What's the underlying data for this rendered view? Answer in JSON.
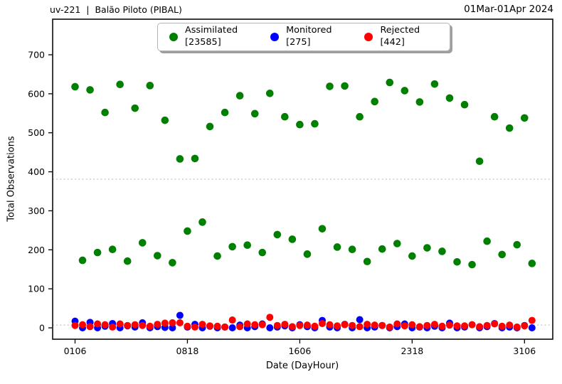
{
  "header": {
    "left": "uv-221  |  Balão Piloto (PIBAL)",
    "right": "01Mar-01Apr 2024"
  },
  "chart_data": {
    "type": "scatter",
    "title": "uv-221 | Balão Piloto (PIBAL)",
    "date_range": "01Mar-01Apr 2024",
    "xlabel": "Date (DayHour)",
    "ylabel": "Total Observations",
    "grid": false,
    "legend_position": "top center",
    "ylim": [
      -30,
      790
    ],
    "y_ticks": [
      0,
      100,
      200,
      300,
      400,
      500,
      600,
      700
    ],
    "x_ticks": [
      {
        "label": "0106",
        "slot": 0
      },
      {
        "label": "0818",
        "slot": 15
      },
      {
        "label": "1606",
        "slot": 30
      },
      {
        "label": "2318",
        "slot": 45
      },
      {
        "label": "3106",
        "slot": 60
      }
    ],
    "x_slots": [
      "0106",
      "0118",
      "0206",
      "0218",
      "0306",
      "0318",
      "0406",
      "0418",
      "0506",
      "0518",
      "0606",
      "0618",
      "0706",
      "0718",
      "0806",
      "0818",
      "0906",
      "0918",
      "1006",
      "1018",
      "1106",
      "1118",
      "1206",
      "1218",
      "1306",
      "1318",
      "1406",
      "1418",
      "1506",
      "1518",
      "1606",
      "1618",
      "1706",
      "1718",
      "1806",
      "1818",
      "1906",
      "1918",
      "2006",
      "2018",
      "2106",
      "2118",
      "2206",
      "2218",
      "2306",
      "2318",
      "2406",
      "2418",
      "2506",
      "2518",
      "2606",
      "2618",
      "2706",
      "2718",
      "2806",
      "2818",
      "2906",
      "2918",
      "3006",
      "3018",
      "3106",
      "3118"
    ],
    "reference_lines": [
      {
        "y": 381,
        "color": "#c9c9c9",
        "style": "dotted"
      },
      {
        "y": 7,
        "color": "#c9c9c9",
        "style": "dotted"
      }
    ],
    "series": [
      {
        "name": "Assimilated",
        "count": 23585,
        "count_label": "[23585]",
        "color": "#008000",
        "values": [
          618,
          173,
          610,
          193,
          552,
          201,
          624,
          171,
          563,
          218,
          621,
          185,
          532,
          167,
          433,
          248,
          434,
          271,
          516,
          184,
          552,
          208,
          595,
          212,
          549,
          193,
          601,
          239,
          541,
          227,
          521,
          189,
          523,
          254,
          619,
          207,
          620,
          201,
          541,
          170,
          580,
          202,
          629,
          216,
          608,
          184,
          579,
          205,
          625,
          196,
          589,
          169,
          572,
          162,
          427,
          222,
          541,
          188,
          512,
          213,
          538,
          165
        ]
      },
      {
        "name": "Monitored",
        "count": 275,
        "count_label": "[275]",
        "color": "#0000ff",
        "values": [
          17,
          0,
          14,
          0,
          4,
          11,
          0,
          5,
          2,
          13,
          0,
          3,
          1,
          0,
          32,
          2,
          9,
          0,
          4,
          0,
          2,
          0,
          7,
          0,
          3,
          10,
          0,
          2,
          5,
          0,
          8,
          3,
          0,
          19,
          2,
          0,
          9,
          0,
          21,
          0,
          2,
          6,
          0,
          3,
          10,
          0,
          2,
          0,
          4,
          0,
          12,
          0,
          2,
          8,
          0,
          3,
          11,
          0,
          2,
          0,
          6,
          0
        ]
      },
      {
        "name": "Rejected",
        "count": 442,
        "count_label": "[442]",
        "color": "#ff0000",
        "values": [
          6,
          8,
          3,
          10,
          8,
          2,
          10,
          6,
          8,
          6,
          4,
          9,
          12,
          13,
          13,
          4,
          2,
          9,
          5,
          4,
          2,
          20,
          3,
          10,
          8,
          8,
          27,
          6,
          9,
          3,
          6,
          7,
          4,
          11,
          8,
          5,
          8,
          6,
          3,
          9,
          7,
          6,
          2,
          10,
          5,
          8,
          3,
          6,
          9,
          4,
          7,
          5,
          5,
          8,
          3,
          6,
          10,
          4,
          7,
          2,
          5,
          19
        ]
      }
    ]
  }
}
